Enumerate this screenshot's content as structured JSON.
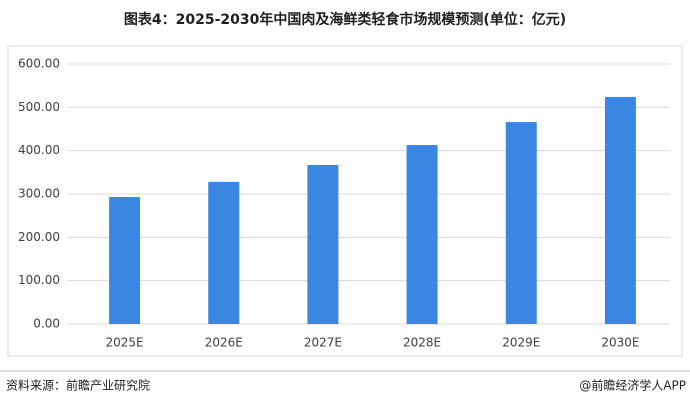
{
  "chart_data": {
    "type": "bar",
    "title": "图表4：2025-2030年中国肉及海鲜类轻食市场规模预测(单位：亿元)",
    "categories": [
      "2025E",
      "2026E",
      "2027E",
      "2028E",
      "2029E",
      "2030E"
    ],
    "values": [
      293,
      328,
      367,
      413,
      466,
      524
    ],
    "color": "#3b86e3",
    "ylim": [
      0,
      600
    ],
    "yticks": [
      {
        "value": 0,
        "label": "0.00"
      },
      {
        "value": 100,
        "label": "100.00"
      },
      {
        "value": 200,
        "label": "200.00"
      },
      {
        "value": 300,
        "label": "300.00"
      },
      {
        "value": 400,
        "label": "400.00"
      },
      {
        "value": 500,
        "label": "500.00"
      },
      {
        "value": 600,
        "label": "600.00"
      }
    ],
    "grid": true
  },
  "footer": {
    "source": "资料来源：前瞻产业研究院",
    "brand": "@前瞻经济学人APP"
  }
}
